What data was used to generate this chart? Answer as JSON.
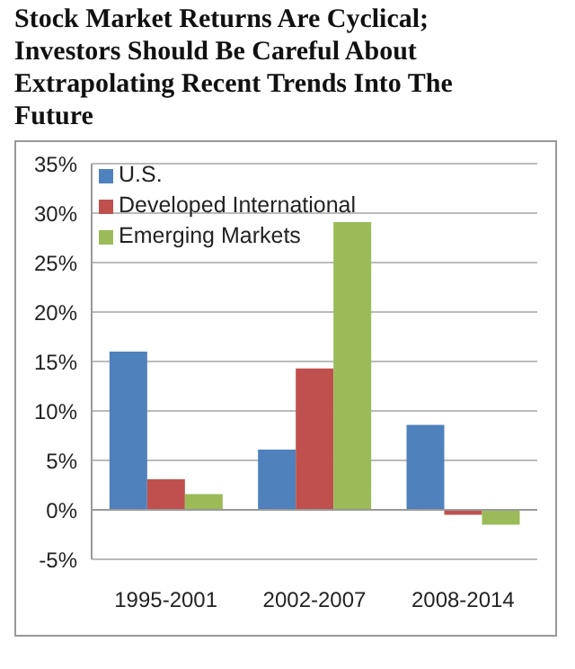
{
  "chart_data": {
    "type": "bar",
    "title": "Stock Market Returns Are Cyclical; Investors Should Be Careful About Extrapolating Recent Trends Into The Future",
    "categories": [
      "1995-2001",
      "2002-2007",
      "2008-2014"
    ],
    "series": [
      {
        "name": "U.S.",
        "color": "#4f81bd",
        "values": [
          16.0,
          6.1,
          8.6
        ]
      },
      {
        "name": "Developed International",
        "color": "#c0504d",
        "values": [
          3.1,
          14.3,
          -0.5
        ]
      },
      {
        "name": "Emerging Markets",
        "color": "#9bbb59",
        "values": [
          1.6,
          29.1,
          -1.5
        ]
      }
    ],
    "ylim": [
      -5,
      35
    ],
    "yticks": [
      {
        "value": -5,
        "label": "-5%"
      },
      {
        "value": 0,
        "label": "0%"
      },
      {
        "value": 5,
        "label": "5%"
      },
      {
        "value": 10,
        "label": "10%"
      },
      {
        "value": 15,
        "label": "15%"
      },
      {
        "value": 20,
        "label": "20%"
      },
      {
        "value": 25,
        "label": "25%"
      },
      {
        "value": 30,
        "label": "30%"
      },
      {
        "value": 35,
        "label": "35%"
      }
    ],
    "grid": "y",
    "legend": "top left"
  }
}
